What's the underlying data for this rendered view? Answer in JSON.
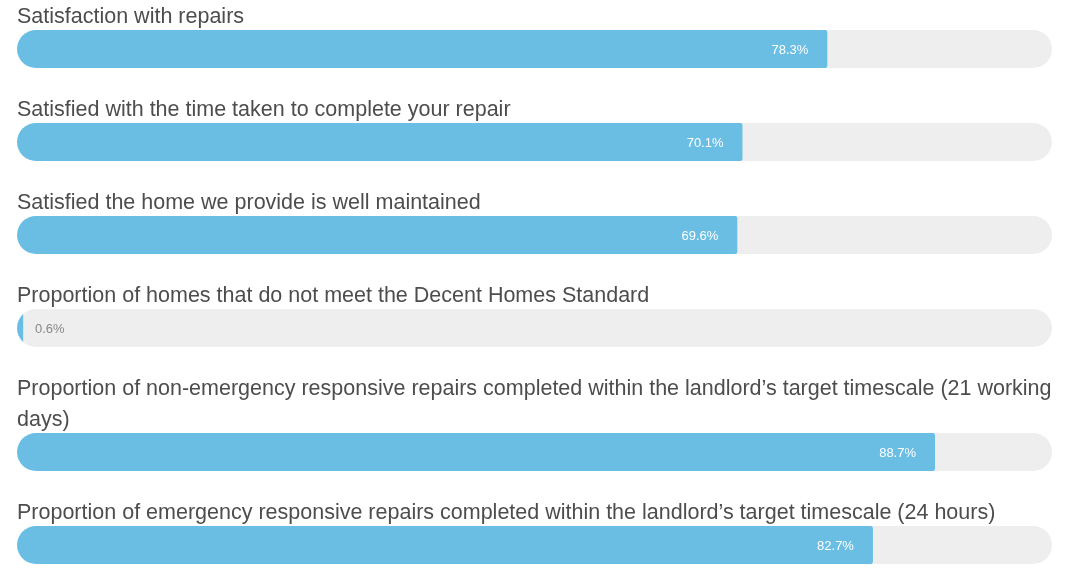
{
  "chart_data": {
    "type": "bar",
    "orientation": "horizontal",
    "categories": [
      "Satisfaction with repairs",
      "Satisfied with the time taken to complete your repair",
      "Satisfied the home we provide is well maintained",
      "Proportion of homes that do not meet the Decent Homes Standard",
      "Proportion of non-emergency responsive repairs completed within the landlord’s target timescale (21 working days)",
      "Proportion of emergency responsive repairs completed within the landlord’s target timescale (24 hours)"
    ],
    "values": [
      78.3,
      70.1,
      69.6,
      0.6,
      88.7,
      82.7
    ],
    "value_labels": [
      "78.3%",
      "70.1%",
      "69.6%",
      "0.6%",
      "88.7%",
      "82.7%"
    ],
    "color": "#6bbee3",
    "xlim": [
      0,
      100
    ],
    "tick_labels": "y"
  }
}
